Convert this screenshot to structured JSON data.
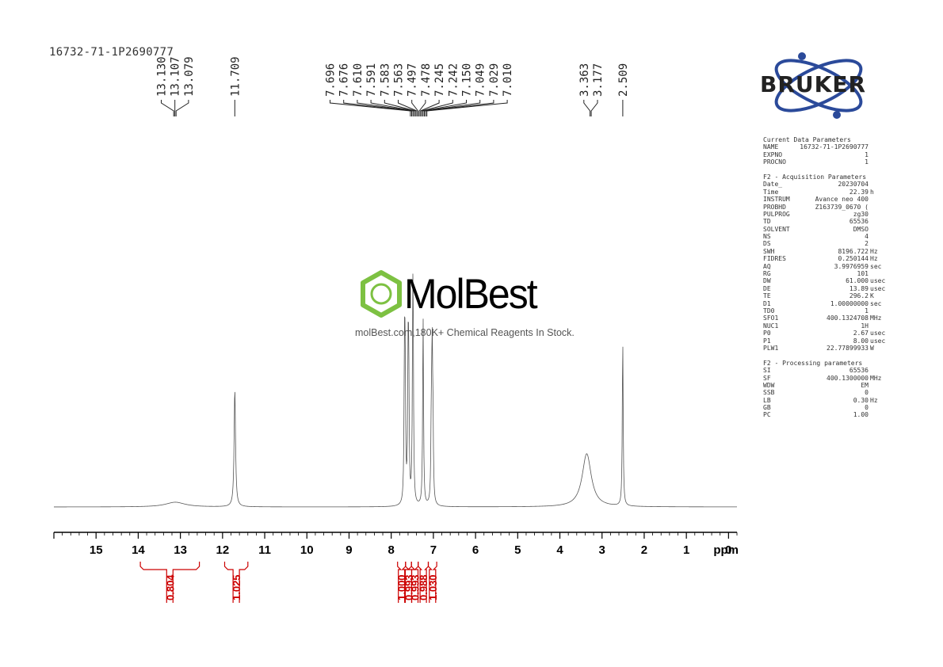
{
  "sample_name": "16732-71-1P2690777",
  "watermark": {
    "brand": "MolBest",
    "tagline": "molBest.com,180K+ Chemical Reagents In Stock."
  },
  "logo_text": "BRUKER",
  "colors": {
    "spectrum": "#555555",
    "integral": "#cc0000",
    "axis": "#000000",
    "watermark_green": "#7dc142",
    "bruker_blue": "#2b4a9a"
  },
  "chart_data": {
    "type": "line",
    "xlabel": "ppm",
    "xlim": [
      16,
      -0.2
    ],
    "x_ticks": [
      15,
      14,
      13,
      12,
      11,
      10,
      9,
      8,
      7,
      6,
      5,
      4,
      3,
      2,
      1,
      0
    ],
    "peak_labels": [
      {
        "group": "g1",
        "ppm": 13.13,
        "labels": [
          "13.130",
          "13.107",
          "13.079"
        ]
      },
      {
        "group": "g2",
        "ppm": 11.709,
        "labels": [
          "11.709"
        ]
      },
      {
        "group": "g3",
        "ppm": 7.35,
        "labels": [
          "7.696",
          "7.676",
          "7.610",
          "7.591",
          "7.583",
          "7.563",
          "7.497",
          "7.478",
          "7.245",
          "7.242",
          "7.150",
          "7.049",
          "7.029",
          "7.010"
        ]
      },
      {
        "group": "g4",
        "ppm": 3.27,
        "labels": [
          "3.363",
          "3.177"
        ]
      },
      {
        "group": "g5",
        "ppm": 2.509,
        "labels": [
          "2.509"
        ]
      }
    ],
    "peaks": [
      {
        "ppm": 13.12,
        "height": 0.025,
        "width": 0.28
      },
      {
        "ppm": 11.709,
        "height": 0.62,
        "width": 0.02
      },
      {
        "ppm": 7.686,
        "height": 0.7,
        "width": 0.012
      },
      {
        "ppm": 7.67,
        "height": 0.68,
        "width": 0.012
      },
      {
        "ppm": 7.6,
        "height": 0.67,
        "width": 0.012
      },
      {
        "ppm": 7.585,
        "height": 0.62,
        "width": 0.012
      },
      {
        "ppm": 7.49,
        "height": 0.7,
        "width": 0.012
      },
      {
        "ppm": 7.48,
        "height": 0.72,
        "width": 0.012
      },
      {
        "ppm": 7.244,
        "height": 1.0,
        "width": 0.012
      },
      {
        "ppm": 7.049,
        "height": 0.4,
        "width": 0.012
      },
      {
        "ppm": 7.029,
        "height": 0.76,
        "width": 0.012
      },
      {
        "ppm": 7.01,
        "height": 0.38,
        "width": 0.012
      },
      {
        "ppm": 3.363,
        "height": 0.28,
        "width": 0.13
      },
      {
        "ppm": 2.509,
        "height": 0.88,
        "width": 0.012
      }
    ],
    "integrals": [
      {
        "from": 13.95,
        "to": 12.55,
        "value": "0.804"
      },
      {
        "from": 11.95,
        "to": 11.4,
        "value": "1.025"
      },
      {
        "from": 7.85,
        "to": 7.66,
        "value": "1.000"
      },
      {
        "from": 7.66,
        "to": 7.52,
        "value": "0.993"
      },
      {
        "from": 7.52,
        "to": 7.36,
        "value": "0.993"
      },
      {
        "from": 7.36,
        "to": 7.12,
        "value": "0.988"
      },
      {
        "from": 7.12,
        "to": 6.92,
        "value": "1.030"
      }
    ]
  },
  "parameters": [
    {
      "title": "Current Data Parameters",
      "rows": [
        {
          "key": "NAME",
          "value": "16732-71-1P2690777",
          "unit": ""
        },
        {
          "key": "EXPNO",
          "value": "1",
          "unit": ""
        },
        {
          "key": "PROCNO",
          "value": "1",
          "unit": ""
        }
      ]
    },
    {
      "title": "F2 - Acquisition Parameters",
      "rows": [
        {
          "key": "Date_",
          "value": "20230704",
          "unit": ""
        },
        {
          "key": "Time",
          "value": "22.39",
          "unit": "h"
        },
        {
          "key": "INSTRUM",
          "value": "Avance neo 400",
          "unit": ""
        },
        {
          "key": "PROBHD",
          "value": "Z163739_0670 (",
          "unit": ""
        },
        {
          "key": "PULPROG",
          "value": "zg30",
          "unit": ""
        },
        {
          "key": "TD",
          "value": "65536",
          "unit": ""
        },
        {
          "key": "SOLVENT",
          "value": "DMSO",
          "unit": ""
        },
        {
          "key": "NS",
          "value": "4",
          "unit": ""
        },
        {
          "key": "DS",
          "value": "2",
          "unit": ""
        },
        {
          "key": "SWH",
          "value": "8196.722",
          "unit": "Hz"
        },
        {
          "key": "FIDRES",
          "value": "0.250144",
          "unit": "Hz"
        },
        {
          "key": "AQ",
          "value": "3.9976959",
          "unit": "sec"
        },
        {
          "key": "RG",
          "value": "101",
          "unit": ""
        },
        {
          "key": "DW",
          "value": "61.000",
          "unit": "usec"
        },
        {
          "key": "DE",
          "value": "13.89",
          "unit": "usec"
        },
        {
          "key": "TE",
          "value": "296.2",
          "unit": "K"
        },
        {
          "key": "D1",
          "value": "1.00000000",
          "unit": "sec"
        },
        {
          "key": "TD0",
          "value": "1",
          "unit": ""
        },
        {
          "key": "SFO1",
          "value": "400.1324708",
          "unit": "MHz"
        },
        {
          "key": "NUC1",
          "value": "1H",
          "unit": ""
        },
        {
          "key": "P0",
          "value": "2.67",
          "unit": "usec"
        },
        {
          "key": "P1",
          "value": "8.00",
          "unit": "usec"
        },
        {
          "key": "PLW1",
          "value": "22.77899933",
          "unit": "W"
        }
      ]
    },
    {
      "title": "F2 - Processing parameters",
      "rows": [
        {
          "key": "SI",
          "value": "65536",
          "unit": ""
        },
        {
          "key": "SF",
          "value": "400.1300000",
          "unit": "MHz"
        },
        {
          "key": "WDW",
          "value": "EM",
          "unit": ""
        },
        {
          "key": "SSB",
          "value": "0",
          "unit": ""
        },
        {
          "key": "LB",
          "value": "0.30",
          "unit": "Hz"
        },
        {
          "key": "GB",
          "value": "0",
          "unit": ""
        },
        {
          "key": "PC",
          "value": "1.00",
          "unit": ""
        }
      ]
    }
  ]
}
